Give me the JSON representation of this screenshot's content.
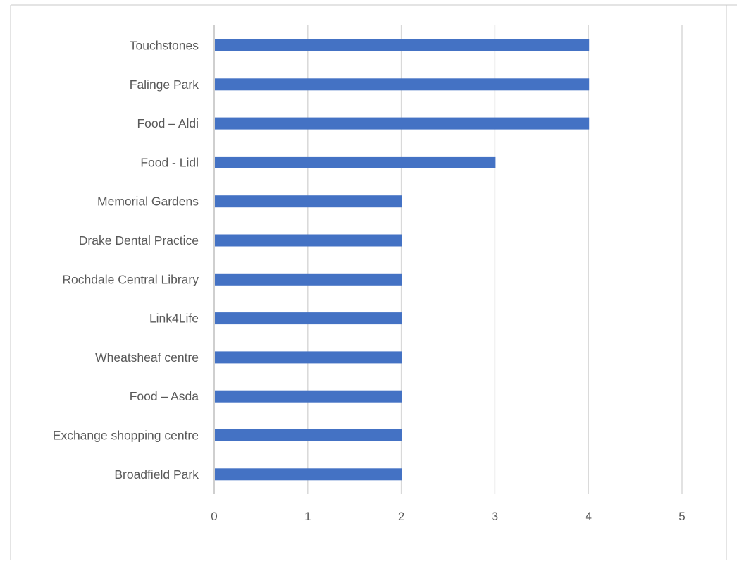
{
  "chart_data": {
    "type": "bar",
    "orientation": "horizontal",
    "categories": [
      "Touchstones",
      "Falinge Park",
      "Food – Aldi",
      "Food - Lidl",
      "Memorial Gardens",
      "Drake Dental Practice",
      "Rochdale Central Library",
      "Link4Life",
      "Wheatsheaf centre",
      "Food – Asda",
      "Exchange shopping centre",
      "Broadfield Park"
    ],
    "values": [
      4,
      4,
      4,
      3,
      2,
      2,
      2,
      2,
      2,
      2,
      2,
      2
    ],
    "xticks": [
      "0",
      "1",
      "2",
      "3",
      "4",
      "5"
    ],
    "xlim": [
      0,
      5
    ],
    "grid": true,
    "legend": "none",
    "bar_color": "#4472C4",
    "grid_color": "#d9d9d9",
    "label_color": "#595959"
  }
}
